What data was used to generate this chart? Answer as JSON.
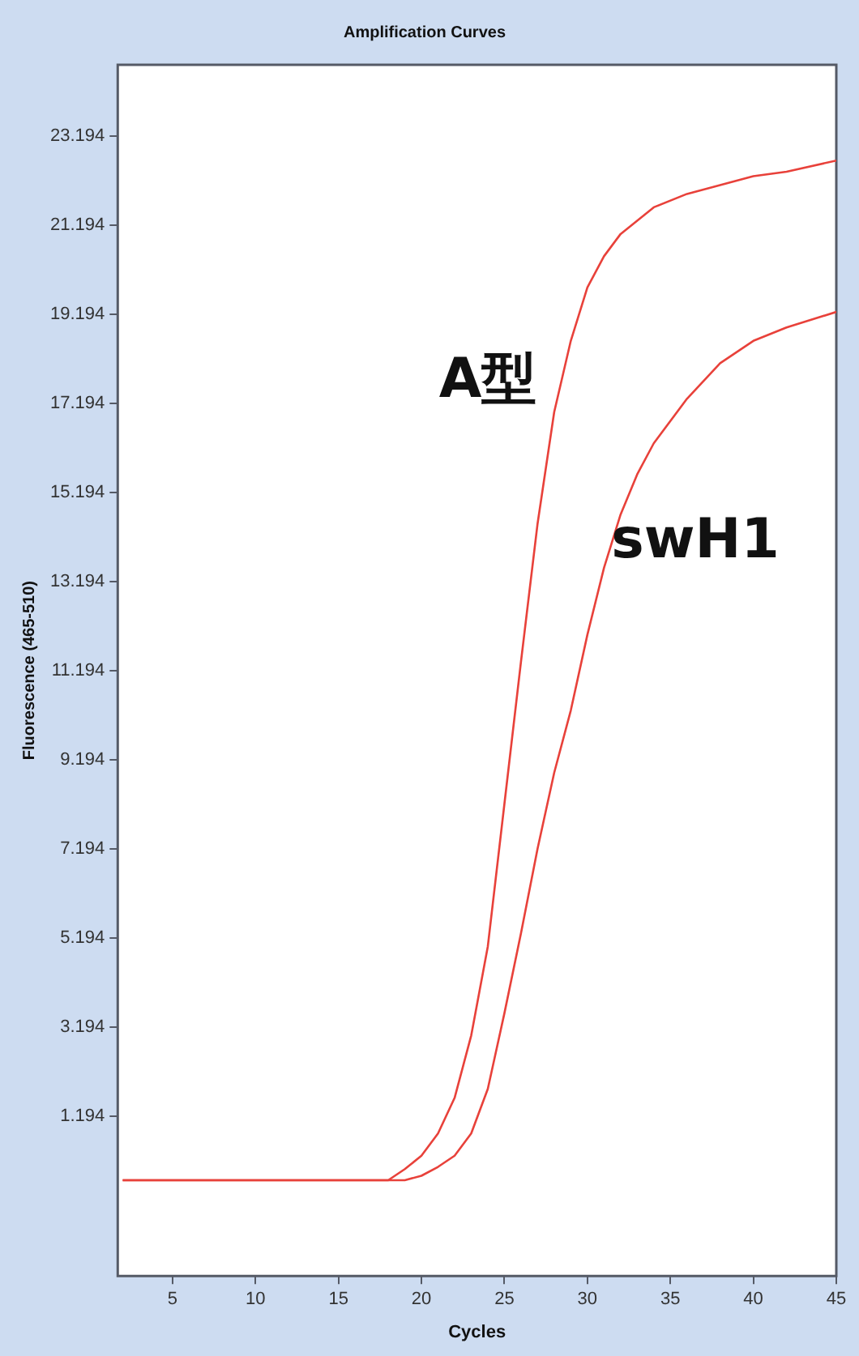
{
  "chart_data": {
    "type": "line",
    "title": "Amplification Curves",
    "xlabel": "Cycles",
    "ylabel": "Fluorescence (465-510)",
    "xlim": [
      1.7,
      45
    ],
    "xticks": [
      5,
      10,
      15,
      20,
      25,
      30,
      35,
      40,
      45
    ],
    "ylim": [
      -2.4,
      24.8
    ],
    "yticks": [
      1.194,
      3.194,
      5.194,
      7.194,
      9.194,
      11.194,
      13.194,
      15.194,
      17.194,
      19.194,
      21.194,
      23.194
    ],
    "grid": false,
    "legend": false,
    "marker": "none",
    "line_style": "solid",
    "series": [
      {
        "name": "A型",
        "color": "#e8413a",
        "x": [
          2,
          18,
          19,
          20,
          21,
          22,
          23,
          24,
          25,
          26,
          27,
          28,
          29,
          30,
          31,
          32,
          34,
          36,
          38,
          40,
          42,
          45
        ],
        "values": [
          -0.25,
          -0.25,
          0.0,
          0.3,
          0.8,
          1.6,
          3.0,
          5.0,
          8.2,
          11.4,
          14.5,
          17.0,
          18.6,
          19.8,
          20.5,
          21.0,
          21.6,
          21.9,
          22.1,
          22.3,
          22.4,
          22.65
        ]
      },
      {
        "name": "swH1",
        "color": "#e8413a",
        "x": [
          2,
          19,
          20,
          21,
          22,
          23,
          24,
          25,
          26,
          27,
          28,
          29,
          30,
          31,
          32,
          33,
          34,
          36,
          38,
          40,
          42,
          45
        ],
        "values": [
          -0.25,
          -0.25,
          -0.15,
          0.05,
          0.3,
          0.8,
          1.8,
          3.5,
          5.3,
          7.2,
          8.9,
          10.3,
          12.0,
          13.5,
          14.7,
          15.6,
          16.3,
          17.3,
          18.1,
          18.6,
          18.9,
          19.25
        ]
      }
    ]
  }
}
